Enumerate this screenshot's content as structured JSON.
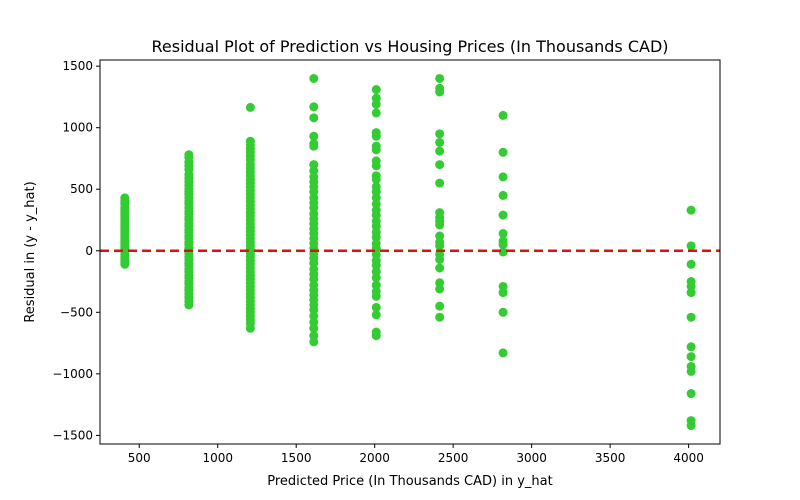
{
  "chart_data": {
    "type": "scatter",
    "title": "Residual Plot of Prediction vs Housing Prices (In Thousands CAD)",
    "xlabel": "Predicted Price (In Thousands CAD) in y_hat",
    "ylabel": "Residual in (y - y_hat)",
    "xlim": [
      250,
      4200
    ],
    "ylim": [
      -1570,
      1550
    ],
    "xticks": [
      500,
      1000,
      1500,
      2000,
      2500,
      3000,
      3500,
      4000
    ],
    "yticks": [
      -1500,
      -1000,
      -500,
      0,
      500,
      1000,
      1500
    ],
    "grid": false,
    "legend": "none",
    "point_color": "#33cc33",
    "reference_line": {
      "y": 0,
      "color": "#dd1111",
      "style": "dashed"
    },
    "series": [
      {
        "x": 408,
        "y": [
          430,
          400,
          380,
          350,
          330,
          310,
          290,
          270,
          250,
          230,
          210,
          190,
          170,
          150,
          130,
          110,
          90,
          70,
          50,
          30,
          10,
          -10,
          -30,
          -50,
          -70,
          -90,
          -110
        ]
      },
      {
        "x": 816,
        "y": [
          780,
          760,
          720,
          690,
          660,
          620,
          590,
          560,
          530,
          500,
          480,
          460,
          430,
          400,
          380,
          350,
          320,
          300,
          270,
          250,
          220,
          200,
          170,
          150,
          120,
          100,
          70,
          50,
          20,
          0,
          -20,
          -50,
          -70,
          -100,
          -120,
          -150,
          -170,
          -200,
          -220,
          -250,
          -270,
          -300,
          -320,
          -350,
          -380,
          -410,
          -440
        ]
      },
      {
        "x": 1208,
        "y": [
          1165,
          890,
          860,
          830,
          800,
          770,
          740,
          700,
          670,
          640,
          610,
          580,
          550,
          520,
          490,
          460,
          430,
          400,
          370,
          340,
          310,
          280,
          250,
          220,
          190,
          160,
          130,
          100,
          70,
          40,
          10,
          -20,
          -50,
          -80,
          -110,
          -140,
          -170,
          -200,
          -230,
          -260,
          -290,
          -320,
          -350,
          -380,
          -410,
          -440,
          -470,
          -500,
          -530,
          -560,
          -590,
          -630
        ]
      },
      {
        "x": 1612,
        "y": [
          1400,
          1170,
          1080,
          930,
          870,
          850,
          700,
          650,
          600,
          560,
          520,
          480,
          430,
          390,
          350,
          300,
          260,
          220,
          180,
          140,
          100,
          60,
          20,
          -20,
          -60,
          -100,
          -150,
          -190,
          -230,
          -280,
          -320,
          -360,
          -400,
          -440,
          -480,
          -530,
          -580,
          -630,
          -690,
          -740
        ]
      },
      {
        "x": 2010,
        "y": [
          1310,
          1240,
          1190,
          1120,
          960,
          930,
          850,
          820,
          730,
          690,
          610,
          580,
          520,
          480,
          430,
          380,
          330,
          290,
          240,
          200,
          150,
          110,
          60,
          20,
          -30,
          -80,
          -120,
          -170,
          -220,
          -280,
          -330,
          -370,
          -460,
          -520,
          -660,
          -690
        ]
      },
      {
        "x": 2414,
        "y": [
          1400,
          1320,
          1290,
          950,
          880,
          810,
          700,
          550,
          310,
          270,
          240,
          210,
          120,
          70,
          40,
          -30,
          -70,
          -140,
          -260,
          -310,
          -450,
          -540
        ]
      },
      {
        "x": 2818,
        "y": [
          1100,
          800,
          600,
          450,
          290,
          140,
          80,
          50,
          -10,
          -290,
          -340,
          -500,
          -830
        ]
      },
      {
        "x": 4016,
        "y": [
          330,
          40,
          -110,
          -250,
          -290,
          -340,
          -540,
          -780,
          -860,
          -940,
          -980,
          -1160,
          -1380,
          -1420
        ]
      }
    ]
  }
}
